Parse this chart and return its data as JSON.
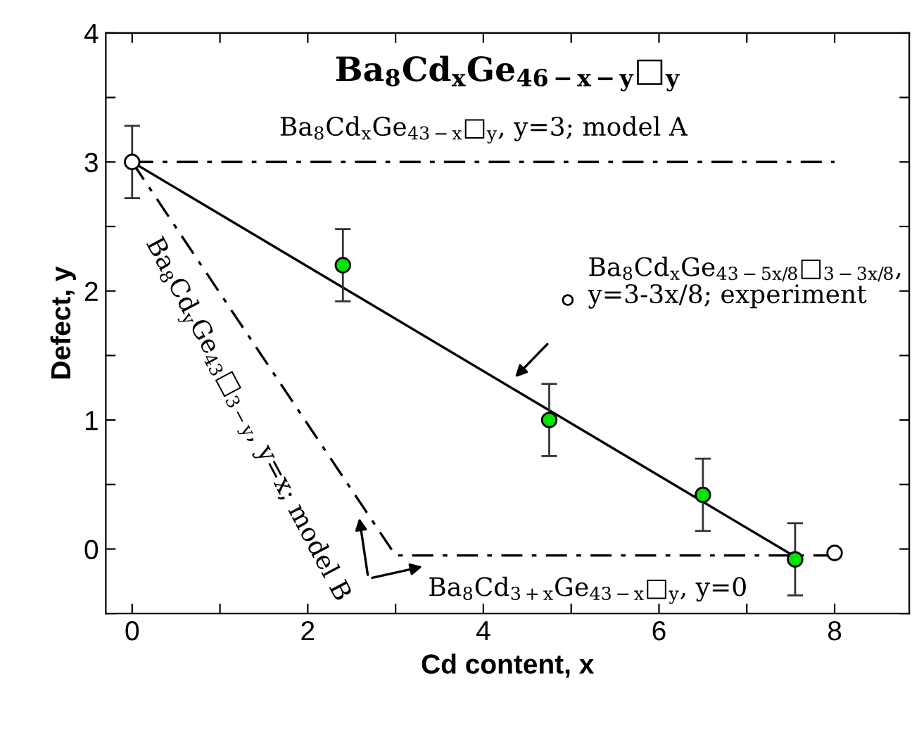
{
  "chart_data": {
    "type": "scatter",
    "title": "Ba$_{8}$Cd$_{x}$Ge$_{46−x−y}$□$_{y}$",
    "xlabel": "Cd content, x",
    "ylabel": "Defect, y",
    "xlim": [
      -0.3,
      8.85
    ],
    "ylim": [
      -0.5,
      4
    ],
    "xticks": [
      0,
      {
        "value": 1,
        "label": null
      },
      2,
      {
        "value": 3,
        "label": null
      },
      4,
      {
        "value": 5,
        "label": null
      },
      6,
      {
        "value": 7,
        "label": null
      },
      8
    ],
    "yticks": [
      {
        "value": -0.5,
        "label": null
      },
      0,
      {
        "value": 0.5,
        "label": null
      },
      1,
      {
        "value": 1.5,
        "label": null
      },
      2,
      {
        "value": 2.5,
        "label": null
      },
      3,
      {
        "value": 3.5,
        "label": null
      },
      4
    ],
    "grid": false,
    "series": [
      {
        "type": "line",
        "color": "#000000",
        "line_style": "dashdot",
        "marker": "none",
        "x": [
          0,
          8
        ],
        "values": [
          3,
          3
        ]
      },
      {
        "type": "line",
        "color": "#000000",
        "line_style": "dashdot",
        "marker": "none",
        "x": [
          0,
          3,
          8
        ],
        "values": [
          3,
          -0.05,
          -0.05
        ]
      },
      {
        "type": "line",
        "color": "#000000",
        "line_style": "solid",
        "marker": "none",
        "x": [
          0,
          7.6
        ],
        "values": [
          3,
          -0.08
        ]
      },
      {
        "color": "#00e600",
        "marker": "circle",
        "x": [
          2.4,
          4.75,
          6.5,
          7.55
        ],
        "values": [
          2.2,
          1.0,
          0.42,
          -0.08
        ],
        "errors": [
          0.28,
          0.28,
          0.28,
          0.28
        ]
      },
      {
        "color": "#ffffff",
        "marker": "circle",
        "x": [
          0,
          8
        ],
        "values": [
          3,
          -0.03
        ],
        "errors": [
          0.28,
          null
        ]
      }
    ],
    "annotations": [
      "Ba$_{8}$Cd$_{x}$Ge$_{43−x}$□$_{y}$, y=3; model A",
      "Ba$_{8}$Cd$_{y}$Ge$_{43}$□$_{3−y}$, y=x; model B",
      "Ba$_{8}$Cd$_{3+x}$Ge$_{43−x}$□$_{y}$, y=0",
      "Ba$_{8}$Cd$_{x}$Ge$_{43−5x/8}$□$_{3−3x/8}$,\ny=3-3x/8; experiment"
    ]
  }
}
